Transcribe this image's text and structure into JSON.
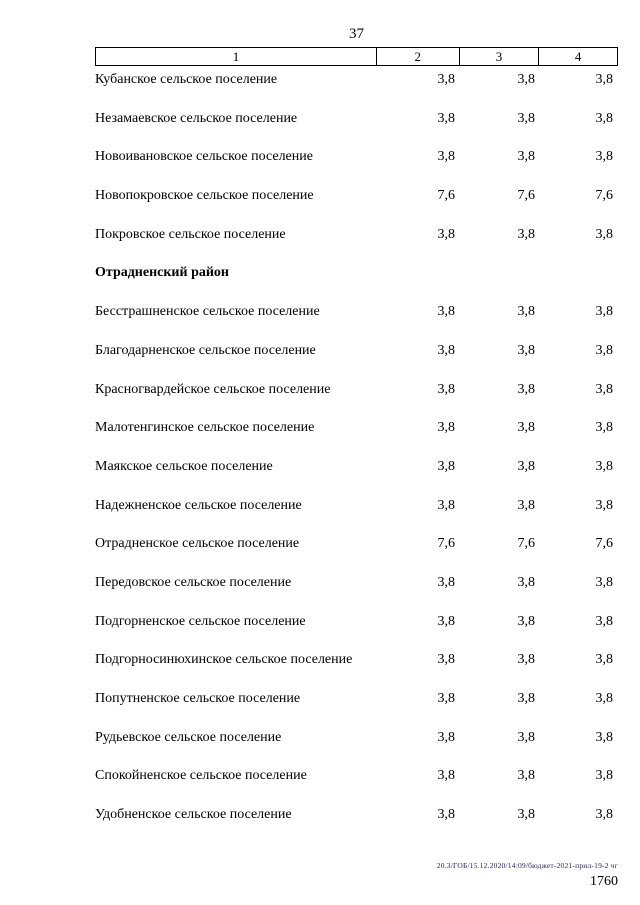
{
  "page": {
    "number_top": "37",
    "number_bottom": "1760",
    "footer_note": "20.3/ГОБ/15.12.2020/14:09/бюджет-2021-прил-19-2 чг"
  },
  "table": {
    "header": [
      "1",
      "2",
      "3",
      "4"
    ],
    "rows": [
      {
        "type": "data",
        "name": "Кубанское сельское поселение",
        "values": [
          "3,8",
          "3,8",
          "3,8"
        ]
      },
      {
        "type": "data",
        "name": "Незамаевское сельское поселение",
        "values": [
          "3,8",
          "3,8",
          "3,8"
        ]
      },
      {
        "type": "data",
        "name": "Новоивановское сельское поселение",
        "values": [
          "3,8",
          "3,8",
          "3,8"
        ]
      },
      {
        "type": "data",
        "name": "Новопокровское сельское поселение",
        "values": [
          "7,6",
          "7,6",
          "7,6"
        ]
      },
      {
        "type": "data",
        "name": "Покровское сельское поселение",
        "values": [
          "3,8",
          "3,8",
          "3,8"
        ]
      },
      {
        "type": "section",
        "name": "Отрадненский район",
        "values": []
      },
      {
        "type": "data",
        "name": "Бесстрашненское сельское поселение",
        "values": [
          "3,8",
          "3,8",
          "3,8"
        ]
      },
      {
        "type": "data",
        "name": "Благодарненское сельское поселение",
        "values": [
          "3,8",
          "3,8",
          "3,8"
        ]
      },
      {
        "type": "data",
        "name": "Красногвардейское сельское поселение",
        "values": [
          "3,8",
          "3,8",
          "3,8"
        ]
      },
      {
        "type": "data",
        "name": "Малотенгинское сельское поселение",
        "values": [
          "3,8",
          "3,8",
          "3,8"
        ]
      },
      {
        "type": "data",
        "name": "Маякское сельское поселение",
        "values": [
          "3,8",
          "3,8",
          "3,8"
        ]
      },
      {
        "type": "data",
        "name": "Надежненское сельское поселение",
        "values": [
          "3,8",
          "3,8",
          "3,8"
        ]
      },
      {
        "type": "data",
        "name": "Отрадненское сельское поселение",
        "values": [
          "7,6",
          "7,6",
          "7,6"
        ]
      },
      {
        "type": "data",
        "name": "Передовское сельское поселение",
        "values": [
          "3,8",
          "3,8",
          "3,8"
        ]
      },
      {
        "type": "data",
        "name": "Подгорненское сельское поселение",
        "values": [
          "3,8",
          "3,8",
          "3,8"
        ]
      },
      {
        "type": "data",
        "name": "Подгорносинюхинское сельское поселение",
        "values": [
          "3,8",
          "3,8",
          "3,8"
        ]
      },
      {
        "type": "data",
        "name": "Попутненское сельское поселение",
        "values": [
          "3,8",
          "3,8",
          "3,8"
        ]
      },
      {
        "type": "data",
        "name": "Рудьевское сельское поселение",
        "values": [
          "3,8",
          "3,8",
          "3,8"
        ]
      },
      {
        "type": "data",
        "name": "Спокойненское сельское поселение",
        "values": [
          "3,8",
          "3,8",
          "3,8"
        ]
      },
      {
        "type": "data",
        "name": "Удобненское сельское поселение",
        "values": [
          "3,8",
          "3,8",
          "3,8"
        ]
      }
    ]
  }
}
